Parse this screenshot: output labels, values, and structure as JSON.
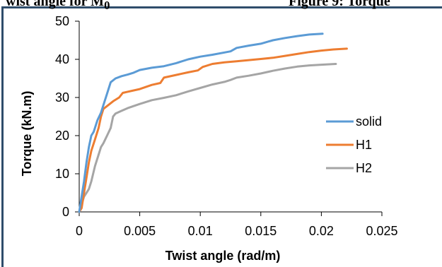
{
  "header": {
    "left_text": "wist angle for M",
    "left_subscript": "0",
    "right_text": "Figure 9: Torque"
  },
  "chart_data": {
    "type": "line",
    "xlabel": "Twist angle (rad/m)",
    "ylabel": "Torque (kN.m)",
    "xlim": [
      0,
      0.025
    ],
    "ylim": [
      0,
      50
    ],
    "xticks": [
      "0",
      "0.005",
      "0.01",
      "0.015",
      "0.02",
      "0.025"
    ],
    "yticks": [
      "0",
      "10",
      "20",
      "30",
      "40",
      "50"
    ],
    "grid": false,
    "legend_position": "right",
    "series": [
      {
        "name": "solid",
        "color": "#5b9bd5",
        "points": [
          [
            0,
            0
          ],
          [
            0.0002,
            4
          ],
          [
            0.0004,
            8
          ],
          [
            0.0006,
            13
          ],
          [
            0.0008,
            17
          ],
          [
            0.001,
            20
          ],
          [
            0.0012,
            21
          ],
          [
            0.0015,
            24
          ],
          [
            0.0018,
            26
          ],
          [
            0.002,
            28
          ],
          [
            0.0023,
            31
          ],
          [
            0.0026,
            34
          ],
          [
            0.003,
            35
          ],
          [
            0.0035,
            35.6
          ],
          [
            0.004,
            36
          ],
          [
            0.0045,
            36.5
          ],
          [
            0.005,
            37.2
          ],
          [
            0.006,
            37.8
          ],
          [
            0.007,
            38.2
          ],
          [
            0.008,
            39
          ],
          [
            0.009,
            40
          ],
          [
            0.01,
            40.7
          ],
          [
            0.011,
            41.2
          ],
          [
            0.012,
            41.8
          ],
          [
            0.0125,
            42.1
          ],
          [
            0.013,
            43
          ],
          [
            0.014,
            43.6
          ],
          [
            0.015,
            44.1
          ],
          [
            0.016,
            45
          ],
          [
            0.017,
            45.6
          ],
          [
            0.018,
            46.1
          ],
          [
            0.019,
            46.5
          ],
          [
            0.0201,
            46.7
          ]
        ]
      },
      {
        "name": "H1",
        "color": "#ed7d31",
        "points": [
          [
            0,
            0
          ],
          [
            0.0002,
            1
          ],
          [
            0.0004,
            5
          ],
          [
            0.0006,
            9
          ],
          [
            0.0008,
            13
          ],
          [
            0.001,
            16
          ],
          [
            0.0013,
            19
          ],
          [
            0.0016,
            22
          ],
          [
            0.0018,
            25
          ],
          [
            0.002,
            27
          ],
          [
            0.0024,
            28
          ],
          [
            0.0028,
            29
          ],
          [
            0.0033,
            30
          ],
          [
            0.0036,
            31.2
          ],
          [
            0.004,
            31.5
          ],
          [
            0.005,
            32.2
          ],
          [
            0.006,
            33.3
          ],
          [
            0.0067,
            33.8
          ],
          [
            0.007,
            35.2
          ],
          [
            0.008,
            35.9
          ],
          [
            0.009,
            36.6
          ],
          [
            0.0098,
            37.1
          ],
          [
            0.0102,
            38
          ],
          [
            0.011,
            38.8
          ],
          [
            0.012,
            39.2
          ],
          [
            0.013,
            39.5
          ],
          [
            0.014,
            39.8
          ],
          [
            0.015,
            40.1
          ],
          [
            0.016,
            40.4
          ],
          [
            0.017,
            40.9
          ],
          [
            0.018,
            41.4
          ],
          [
            0.019,
            41.9
          ],
          [
            0.02,
            42.3
          ],
          [
            0.021,
            42.6
          ],
          [
            0.0221,
            42.8
          ]
        ]
      },
      {
        "name": "H2",
        "color": "#a5a5a5",
        "points": [
          [
            0,
            0
          ],
          [
            0.0002,
            2
          ],
          [
            0.0004,
            4
          ],
          [
            0.0006,
            5
          ],
          [
            0.0008,
            6
          ],
          [
            0.001,
            8
          ],
          [
            0.0013,
            12
          ],
          [
            0.0016,
            15
          ],
          [
            0.0018,
            17
          ],
          [
            0.002,
            18
          ],
          [
            0.0023,
            20
          ],
          [
            0.0026,
            22
          ],
          [
            0.0028,
            25
          ],
          [
            0.003,
            25.8
          ],
          [
            0.0035,
            26.5
          ],
          [
            0.004,
            27.2
          ],
          [
            0.005,
            28.3
          ],
          [
            0.006,
            29.3
          ],
          [
            0.007,
            29.9
          ],
          [
            0.008,
            30.6
          ],
          [
            0.009,
            31.6
          ],
          [
            0.01,
            32.5
          ],
          [
            0.011,
            33.4
          ],
          [
            0.012,
            34.1
          ],
          [
            0.0125,
            34.6
          ],
          [
            0.013,
            35.2
          ],
          [
            0.014,
            35.7
          ],
          [
            0.015,
            36.3
          ],
          [
            0.016,
            37
          ],
          [
            0.017,
            37.6
          ],
          [
            0.018,
            38.1
          ],
          [
            0.019,
            38.4
          ],
          [
            0.02,
            38.6
          ],
          [
            0.0212,
            38.8
          ]
        ]
      }
    ]
  }
}
